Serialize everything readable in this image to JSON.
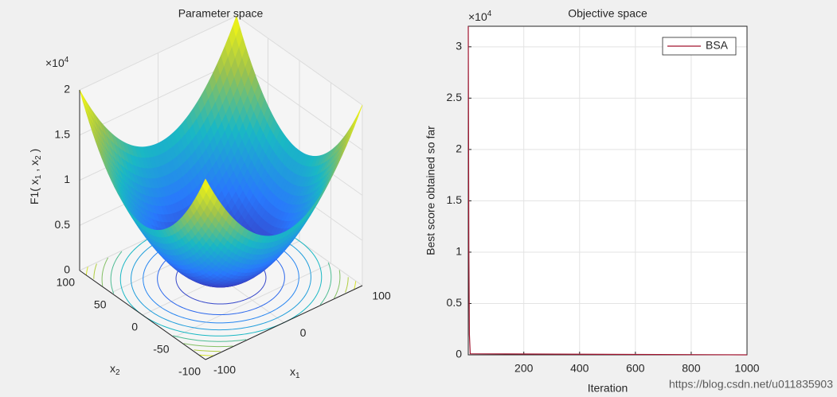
{
  "chart_data": [
    {
      "type": "surface",
      "title": "Parameter space",
      "xlabel": [
        "x",
        "1"
      ],
      "ylabel": [
        "x",
        "2"
      ],
      "zlabel": [
        "F1( x",
        "1",
        " , x",
        "2",
        " )"
      ],
      "zexponent": [
        "×10",
        "4"
      ],
      "xlim": [
        -100,
        100
      ],
      "ylim": [
        -100,
        100
      ],
      "zlim": [
        0,
        20000
      ],
      "xticks": [
        -100,
        0,
        100
      ],
      "yticks": [
        -100,
        -50,
        0,
        50,
        100
      ],
      "zticks": [
        0,
        {
          "value": 5000,
          "label": "0.5"
        },
        {
          "value": 10000,
          "label": "1"
        },
        {
          "value": 15000,
          "label": "1.5"
        },
        {
          "value": 20000,
          "label": "2"
        }
      ],
      "grid": true,
      "colormap": "parula"
    },
    {
      "type": "line",
      "title": "Objective space",
      "xlabel": "Iteration",
      "ylabel": "Best score obtained so far",
      "yexponent": [
        "×10",
        "4"
      ],
      "x": [
        1,
        2,
        3,
        5,
        8,
        1000
      ],
      "series": [
        {
          "name": "BSA",
          "color": "#a2142f",
          "values": [
            32000,
            22000,
            10500,
            2000,
            100,
            0
          ]
        }
      ],
      "xlim": [
        1,
        1000
      ],
      "xticks": [
        200,
        400,
        600,
        800,
        1000
      ],
      "ylim": [
        0,
        32000
      ],
      "yticks": [
        0,
        {
          "value": 5000,
          "label": "0.5"
        },
        {
          "value": 10000,
          "label": "1"
        },
        {
          "value": 15000,
          "label": "1.5"
        },
        {
          "value": 20000,
          "label": "2"
        },
        {
          "value": 25000,
          "label": "2.5"
        },
        {
          "value": 30000,
          "label": "3"
        }
      ],
      "grid": true,
      "legend": "northeast"
    }
  ],
  "watermark": "https://blog.csdn.net/u011835903"
}
